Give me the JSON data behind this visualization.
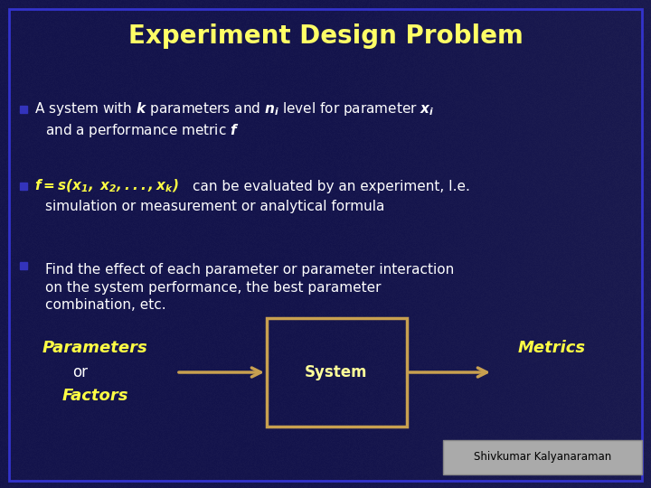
{
  "title": "Experiment Design Problem",
  "title_color": "#FFFF66",
  "title_fontsize": 20,
  "background_color": "#1a1a50",
  "overlay_color": "#1a1a60",
  "border_color": "#3333cc",
  "bullet_color": "#3333bb",
  "text_color": "#ffffff",
  "italic_color": "#FFFF44",
  "fs_body": 11,
  "bottom_text_color": "#FFFF44",
  "arrow_color": "#c8a050",
  "system_box_color": "#c8a050",
  "system_text_color": "#ffff99",
  "watermark": "Shivkumar Kalyanaraman",
  "watermark_bg": "#aaaaaa",
  "watermark_text_color": "#000000",
  "bottom_center": "System"
}
